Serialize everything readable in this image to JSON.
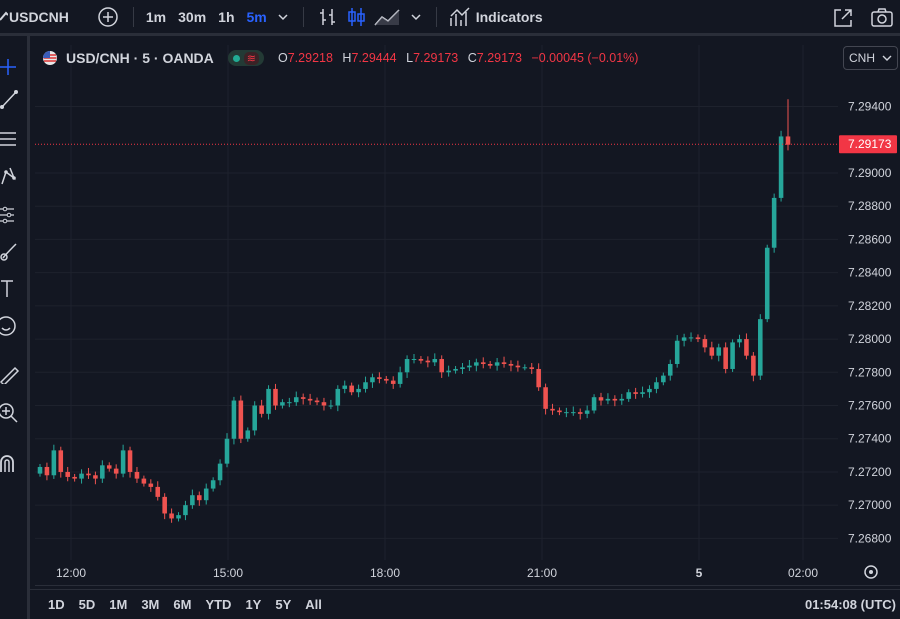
{
  "toolbar": {
    "symbol": "USDCNH",
    "intervals": [
      "1m",
      "30m",
      "1h",
      "5m"
    ],
    "active_interval": "5m",
    "indicators_label": "Indicators"
  },
  "legend": {
    "title": "USD/CNH · 5 · OANDA",
    "open_key": "O",
    "open": "7.29218",
    "high_key": "H",
    "high": "7.29444",
    "low_key": "L",
    "low": "7.29173",
    "close_key": "C",
    "close": "7.29173",
    "change": "−0.00045 (−0.01%)"
  },
  "currency_select": "CNH",
  "price_label": "7.29173",
  "bottom": {
    "ranges": [
      "1D",
      "5D",
      "1M",
      "3M",
      "6M",
      "YTD",
      "1Y",
      "5Y",
      "All"
    ],
    "clock": "01:54:08 (UTC)"
  },
  "colors": {
    "up": "#26a69a",
    "down": "#ef5350",
    "accent": "#2962ff",
    "price_tag": "#f23645"
  },
  "chart_data": {
    "type": "candlestick",
    "y_ticks": [
      "7.29400",
      "7.29000",
      "7.28800",
      "7.28600",
      "7.28400",
      "7.28200",
      "7.28000",
      "7.27800",
      "7.27600",
      "7.27400",
      "7.27200",
      "7.27000",
      "7.26800"
    ],
    "y_tick_values": [
      7.294,
      7.29,
      7.288,
      7.286,
      7.284,
      7.282,
      7.28,
      7.278,
      7.276,
      7.274,
      7.272,
      7.27,
      7.268
    ],
    "x_ticks": [
      "12:00",
      "15:00",
      "18:00",
      "21:00",
      "5",
      "02:00"
    ],
    "ylim": [
      7.267,
      7.2962
    ],
    "last_price": 7.29173,
    "series": [
      {
        "c": [
          7.2723,
          7.2718,
          7.2733,
          7.272,
          7.2717,
          7.2716,
          7.2719,
          7.2718,
          7.2716,
          7.2724,
          7.2722,
          7.2719,
          7.2733,
          7.272,
          7.2716,
          7.2713,
          7.2711,
          7.2705,
          7.2695,
          7.2692,
          7.2694,
          7.27,
          7.2706,
          7.2703,
          7.271,
          7.2715,
          7.2725,
          7.274,
          7.2763,
          7.274,
          7.2745,
          7.276,
          7.2755,
          7.277,
          7.276,
          7.2762,
          7.2762,
          7.2765,
          7.2764,
          7.2763,
          7.2762,
          7.276,
          7.276,
          7.277,
          7.2772,
          7.2768,
          7.277,
          7.2774,
          7.2777,
          7.2776,
          7.2775,
          7.2773,
          7.278,
          7.2788,
          7.2788,
          7.2787,
          7.2786,
          7.2788,
          7.278,
          7.2781,
          7.2782,
          7.2783,
          7.2784,
          7.2786,
          7.2785,
          7.2784,
          7.2786,
          7.2785,
          7.2784,
          7.2783,
          7.2783,
          7.2782,
          7.2771,
          7.2758,
          7.2757,
          7.2756,
          7.2756,
          7.2756,
          7.2755,
          7.2757,
          7.2765,
          7.2763,
          7.2764,
          7.2763,
          7.2764,
          7.2768,
          7.2767,
          7.2768,
          7.277,
          7.2774,
          7.2778,
          7.2785,
          7.2799,
          7.2801,
          7.2801,
          7.28,
          7.2795,
          7.279,
          7.2795,
          7.2782,
          7.2798,
          7.28,
          7.279,
          7.2778,
          7.2812,
          7.2855,
          7.2885,
          7.2922,
          7.2917
        ]
      }
    ]
  }
}
